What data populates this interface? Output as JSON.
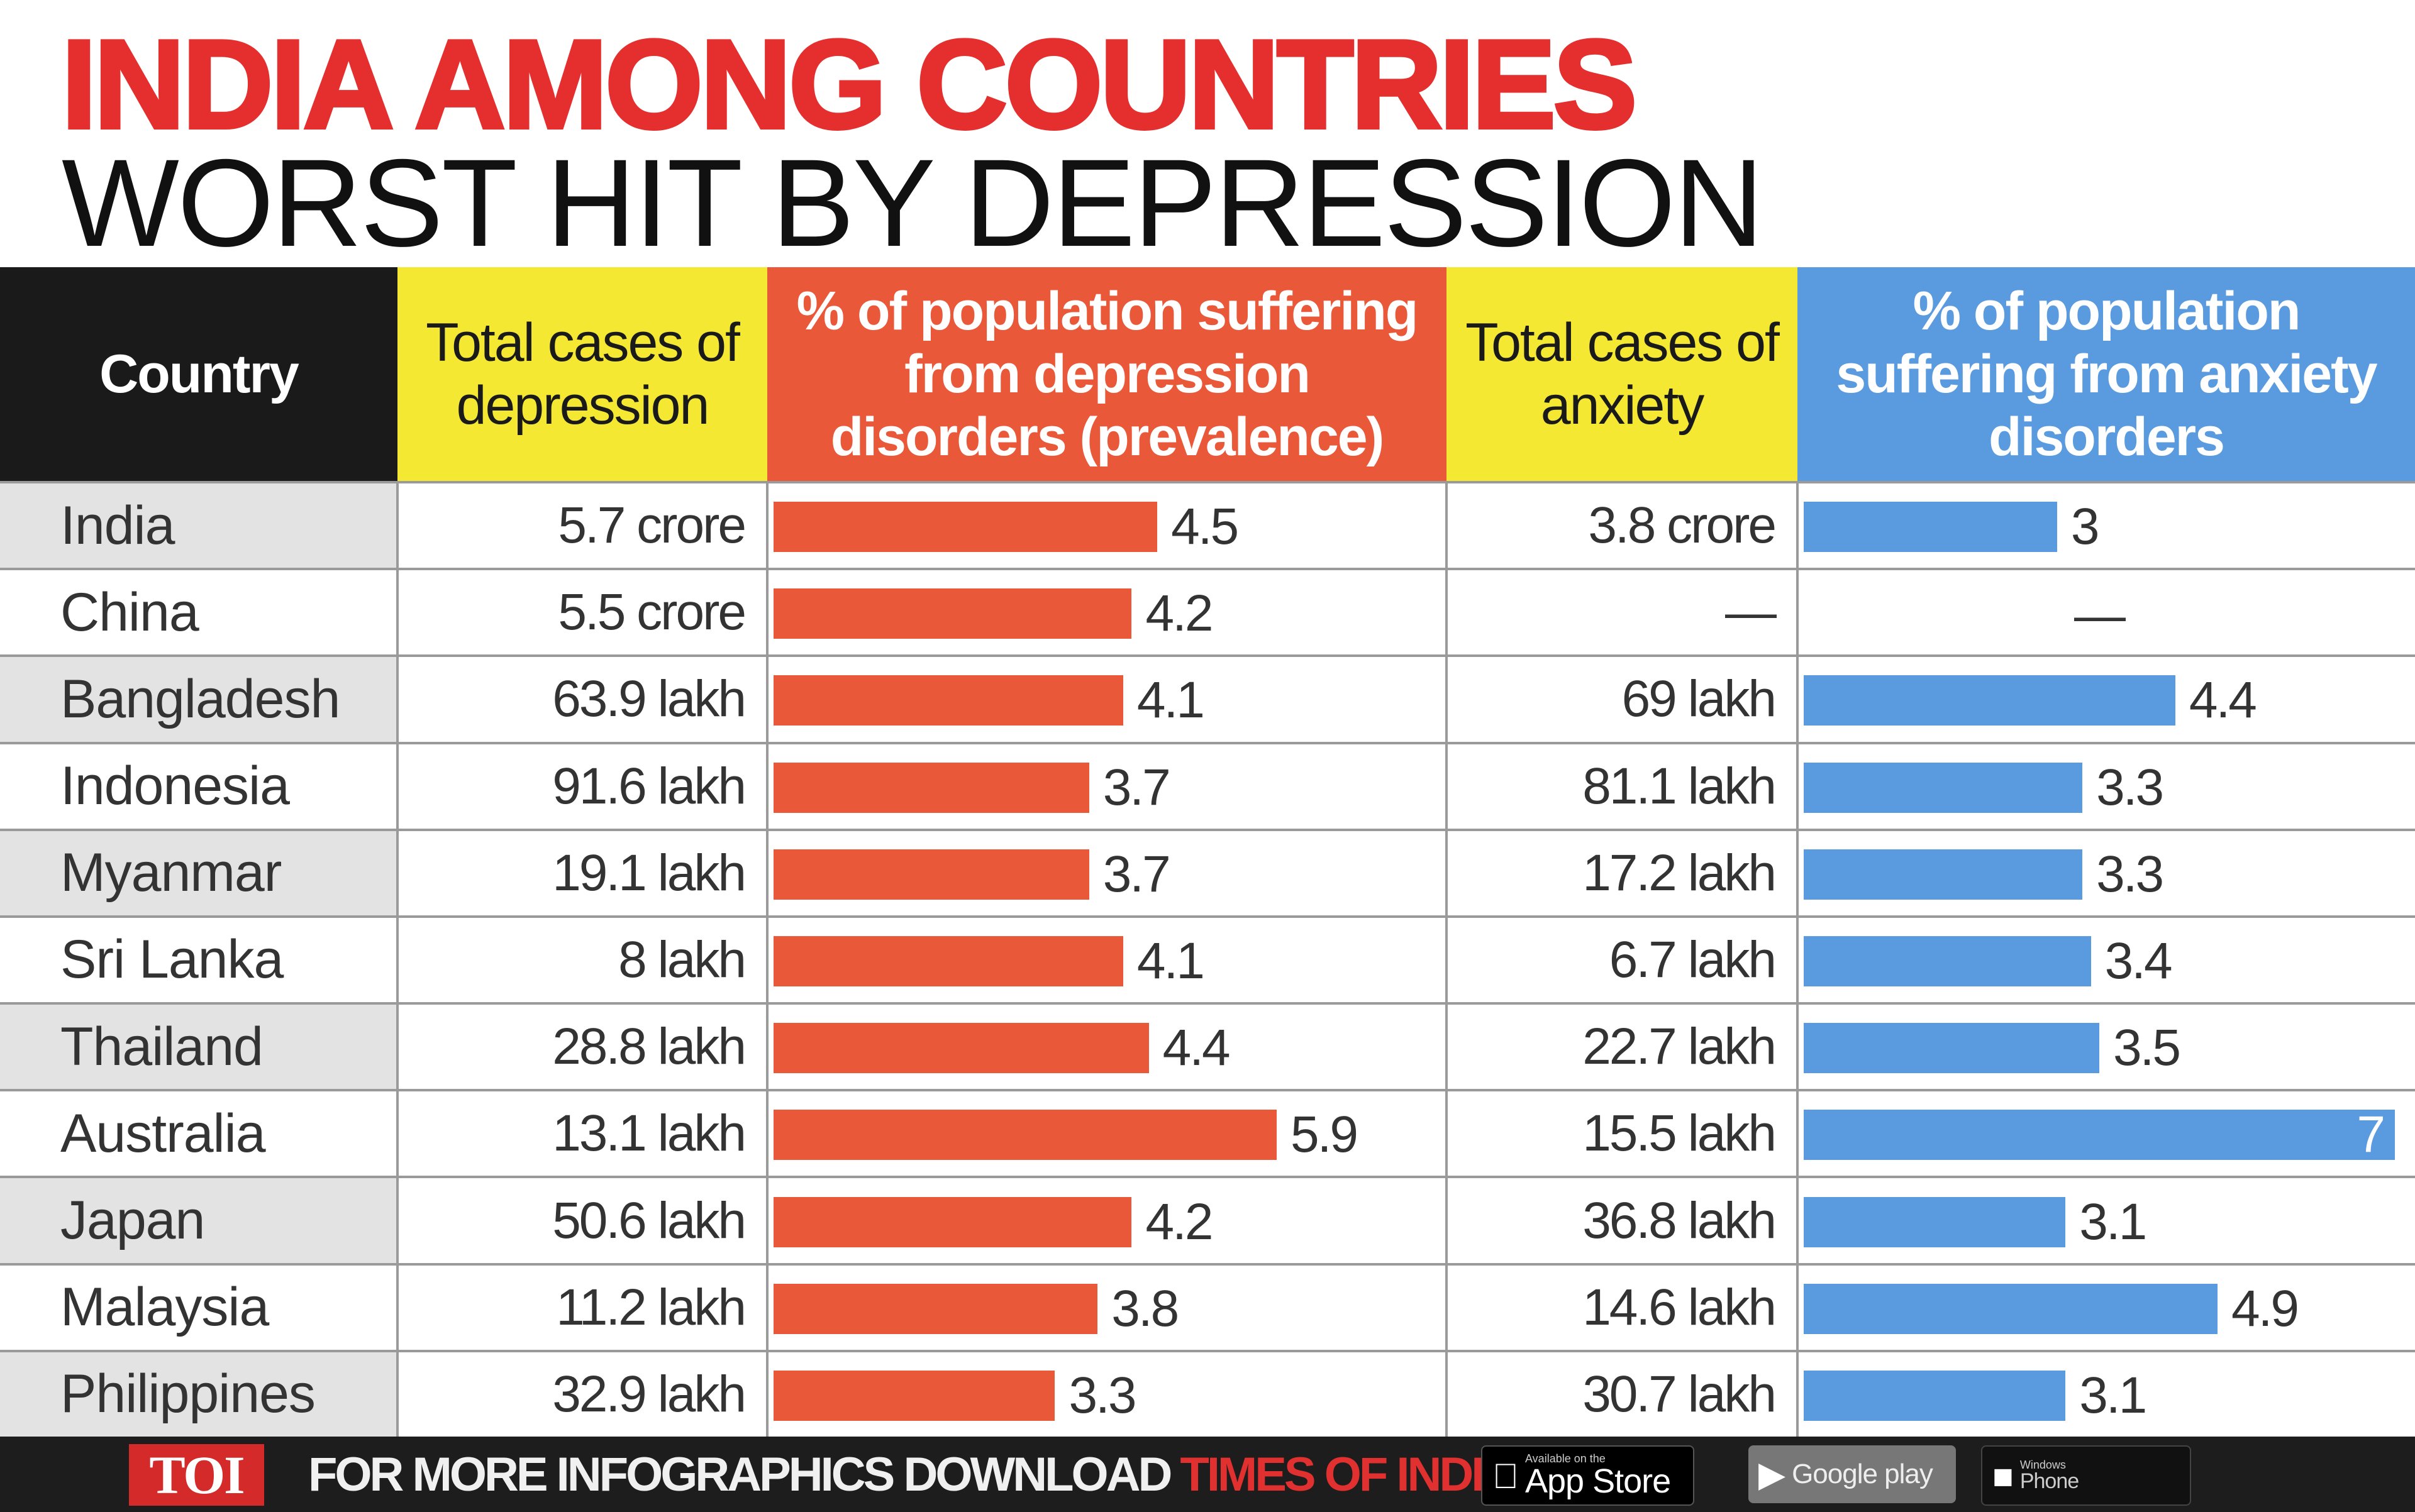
{
  "chart_data": {
    "type": "table",
    "title_line1": "INDIA AMONG COUNTRIES",
    "title_line2": "WORST HIT BY DEPRESSION",
    "columns": [
      "Country",
      "Total cases of depression",
      "% of population suffering from depression disorders (prevalence)",
      "Total cases of anxiety",
      "% of population suffering from anxiety disorders"
    ],
    "rows": [
      {
        "country": "India",
        "depression_cases": "5.7 crore",
        "depression_pct": 4.5,
        "depression_pct_label": "4.5",
        "anxiety_cases": "3.8 crore",
        "anxiety_pct": 3,
        "anxiety_pct_label": "3"
      },
      {
        "country": "China",
        "depression_cases": "5.5 crore",
        "depression_pct": 4.2,
        "depression_pct_label": "4.2",
        "anxiety_cases": "—",
        "anxiety_pct": null,
        "anxiety_pct_label": "—"
      },
      {
        "country": "Bangladesh",
        "depression_cases": "63.9 lakh",
        "depression_pct": 4.1,
        "depression_pct_label": "4.1",
        "anxiety_cases": "69 lakh",
        "anxiety_pct": 4.4,
        "anxiety_pct_label": "4.4"
      },
      {
        "country": "Indonesia",
        "depression_cases": "91.6 lakh",
        "depression_pct": 3.7,
        "depression_pct_label": "3.7",
        "anxiety_cases": "81.1 lakh",
        "anxiety_pct": 3.3,
        "anxiety_pct_label": "3.3"
      },
      {
        "country": "Myanmar",
        "depression_cases": "19.1 lakh",
        "depression_pct": 3.7,
        "depression_pct_label": "3.7",
        "anxiety_cases": "17.2 lakh",
        "anxiety_pct": 3.3,
        "anxiety_pct_label": "3.3"
      },
      {
        "country": "Sri Lanka",
        "depression_cases": "8 lakh",
        "depression_pct": 4.1,
        "depression_pct_label": "4.1",
        "anxiety_cases": "6.7 lakh",
        "anxiety_pct": 3.4,
        "anxiety_pct_label": "3.4"
      },
      {
        "country": "Thailand",
        "depression_cases": "28.8 lakh",
        "depression_pct": 4.4,
        "depression_pct_label": "4.4",
        "anxiety_cases": "22.7 lakh",
        "anxiety_pct": 3.5,
        "anxiety_pct_label": "3.5"
      },
      {
        "country": "Australia",
        "depression_cases": "13.1 lakh",
        "depression_pct": 5.9,
        "depression_pct_label": "5.9",
        "anxiety_cases": "15.5 lakh",
        "anxiety_pct": 7,
        "anxiety_pct_label": "7"
      },
      {
        "country": "Japan",
        "depression_cases": "50.6 lakh",
        "depression_pct": 4.2,
        "depression_pct_label": "4.2",
        "anxiety_cases": "36.8 lakh",
        "anxiety_pct": 3.1,
        "anxiety_pct_label": "3.1"
      },
      {
        "country": "Malaysia",
        "depression_cases": "11.2 lakh",
        "depression_pct": 3.8,
        "depression_pct_label": "3.8",
        "anxiety_cases": "14.6 lakh",
        "anxiety_pct": 4.9,
        "anxiety_pct_label": "4.9"
      },
      {
        "country": "Philippines",
        "depression_cases": "32.9 lakh",
        "depression_pct": 3.3,
        "depression_pct_label": "3.3",
        "anxiety_cases": "30.7 lakh",
        "anxiety_pct": 3.1,
        "anxiety_pct_label": "3.1"
      }
    ],
    "depression_axis_max": 5.9,
    "anxiety_axis_max": 7
  },
  "colors": {
    "title_red": "#e52e2e",
    "depression_bar": "#e95838",
    "anxiety_bar": "#5a9be0",
    "header_yellow": "#f4e832",
    "header_black": "#1a1a1a"
  },
  "footer": {
    "logo": "TOI",
    "promo_text": "FOR MORE  INFOGRAPHICS DOWNLOAD",
    "promo_highlight": "TIMES OF INDIA  APP",
    "apple_small": "Available on the",
    "apple_store": "App Store",
    "google_store": "Google play",
    "windows_small": "Windows",
    "windows_store": "Phone"
  }
}
